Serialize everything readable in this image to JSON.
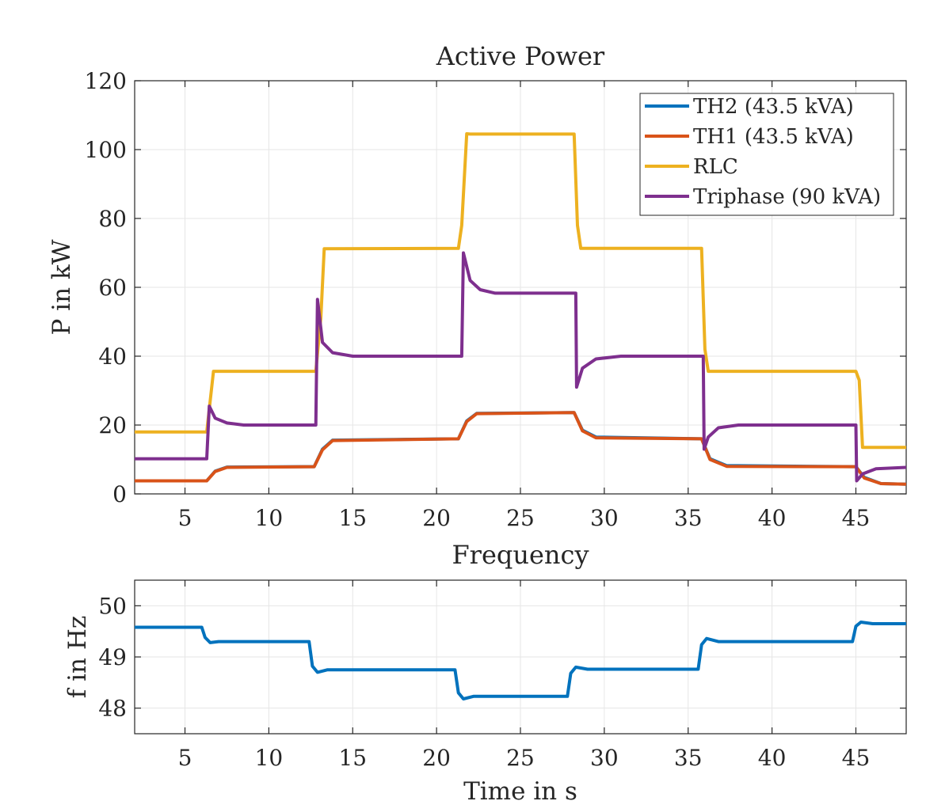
{
  "chart_data": [
    {
      "type": "line",
      "title": "Active Power",
      "xlabel": "",
      "ylabel": "P in kW",
      "xlim": [
        2,
        48
      ],
      "ylim": [
        0,
        120
      ],
      "xticks": [
        5,
        10,
        15,
        20,
        25,
        30,
        35,
        40,
        45
      ],
      "yticks": [
        0,
        20,
        40,
        60,
        80,
        100,
        120
      ],
      "grid": true,
      "legend_position": "top-right",
      "series": [
        {
          "name": "TH2 (43.5 kVA)",
          "color": "#0072BD",
          "x": [
            2,
            6.3,
            6.8,
            7.5,
            12.7,
            13.2,
            13.8,
            21.3,
            21.8,
            22.4,
            28.2,
            28.7,
            29.5,
            35.8,
            36.3,
            37.3,
            45.0,
            45.5,
            46.5,
            48
          ],
          "y": [
            3.8,
            3.8,
            6.6,
            7.8,
            7.9,
            13.0,
            15.6,
            16.0,
            21.2,
            23.4,
            23.6,
            18.5,
            16.5,
            16.0,
            10.2,
            8.2,
            7.9,
            4.8,
            3.0,
            2.8
          ]
        },
        {
          "name": "TH1 (43.5 kVA)",
          "color": "#D95319",
          "x": [
            2,
            6.3,
            6.8,
            7.5,
            12.7,
            13.2,
            13.8,
            21.3,
            21.8,
            22.4,
            28.2,
            28.7,
            29.5,
            35.8,
            36.3,
            37.3,
            45.0,
            45.5,
            46.5,
            48
          ],
          "y": [
            3.8,
            3.8,
            6.5,
            7.7,
            7.9,
            12.8,
            15.5,
            16.0,
            21.0,
            23.3,
            23.6,
            18.3,
            16.3,
            16.0,
            10.0,
            8.0,
            7.9,
            4.6,
            3.0,
            2.8
          ]
        },
        {
          "name": "RLC",
          "color": "#EDB120",
          "x": [
            2,
            6.3,
            6.7,
            12.8,
            13.1,
            13.3,
            21.3,
            21.5,
            21.8,
            22.0,
            28.2,
            28.4,
            28.6,
            35.8,
            36.0,
            36.2,
            45.0,
            45.2,
            45.4,
            48
          ],
          "y": [
            18.0,
            18.0,
            35.6,
            35.6,
            51.0,
            71.2,
            71.3,
            78.0,
            104.6,
            104.5,
            104.5,
            78.0,
            71.3,
            71.3,
            42.0,
            35.6,
            35.6,
            33.0,
            13.5,
            13.5
          ]
        },
        {
          "name": "Triphase (90 kVA)",
          "color": "#7E2F8E",
          "x": [
            2,
            6.3,
            6.45,
            6.8,
            7.5,
            8.5,
            12.8,
            12.9,
            13.2,
            13.8,
            15.0,
            21.5,
            21.6,
            22.0,
            22.6,
            23.5,
            28.3,
            28.35,
            28.7,
            29.5,
            31.0,
            35.9,
            35.95,
            36.2,
            36.8,
            38.0,
            45.0,
            45.05,
            45.4,
            46.2,
            48
          ],
          "y": [
            10.2,
            10.2,
            25.5,
            22.0,
            20.6,
            20.0,
            20.0,
            56.5,
            44.0,
            41.0,
            40.0,
            40.0,
            70.0,
            62.0,
            59.3,
            58.3,
            58.3,
            31.0,
            36.5,
            39.2,
            40.0,
            40.0,
            13.0,
            16.5,
            19.2,
            20.0,
            20.0,
            3.8,
            5.8,
            7.3,
            7.7
          ]
        }
      ]
    },
    {
      "type": "line",
      "title": "Frequency",
      "xlabel": "Time in s",
      "ylabel": "f in Hz",
      "xlim": [
        2,
        48
      ],
      "ylim": [
        47.5,
        50.5
      ],
      "xticks": [
        5,
        10,
        15,
        20,
        25,
        30,
        35,
        40,
        45
      ],
      "yticks": [
        48,
        49,
        50
      ],
      "grid": true,
      "series": [
        {
          "color": "#0072BD",
          "x": [
            2,
            6.0,
            6.2,
            6.5,
            7.0,
            12.4,
            12.6,
            12.9,
            13.5,
            21.1,
            21.3,
            21.6,
            22.2,
            27.8,
            28.0,
            28.3,
            29.0,
            35.6,
            35.8,
            36.1,
            36.8,
            44.8,
            45.0,
            45.3,
            46.0,
            48
          ],
          "y": [
            49.58,
            49.58,
            49.38,
            49.28,
            49.3,
            49.3,
            48.82,
            48.7,
            48.75,
            48.75,
            48.3,
            48.18,
            48.23,
            48.23,
            48.68,
            48.8,
            48.76,
            48.76,
            49.24,
            49.36,
            49.3,
            49.3,
            49.6,
            49.68,
            49.65,
            49.65
          ]
        }
      ]
    }
  ]
}
